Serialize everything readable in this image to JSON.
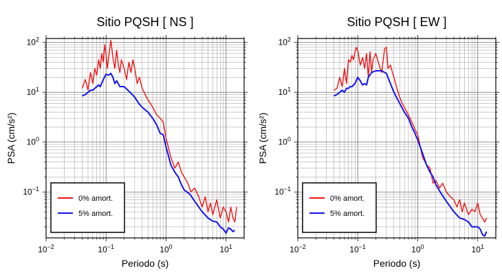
{
  "chart_data": [
    {
      "type": "line",
      "title": "Sitio PQSH [ NS ]",
      "xlabel": "Periodo (s)",
      "ylabel": "PSA (cm/s²)",
      "xscale": "log",
      "yscale": "log",
      "xlim": [
        0.01,
        20
      ],
      "ylim": [
        0.012,
        120
      ],
      "x_ticks": [
        {
          "value": 0.01,
          "base": "10",
          "exp": "−2"
        },
        {
          "value": 0.1,
          "base": "10",
          "exp": "−1"
        },
        {
          "value": 1,
          "base": "10",
          "exp": "0"
        },
        {
          "value": 10,
          "base": "10",
          "exp": "1"
        }
      ],
      "y_ticks": [
        {
          "value": 0.1,
          "base": "10",
          "exp": "−1"
        },
        {
          "value": 1,
          "base": "10",
          "exp": "0"
        },
        {
          "value": 10,
          "base": "10",
          "exp": "1"
        },
        {
          "value": 100,
          "base": "10",
          "exp": "2"
        }
      ],
      "grid": true,
      "legend_position": "bottom-left",
      "series": [
        {
          "name": "0% amort.",
          "color": "#ee1111",
          "x": [
            0.04,
            0.045,
            0.05,
            0.055,
            0.06,
            0.065,
            0.07,
            0.075,
            0.08,
            0.085,
            0.09,
            0.095,
            0.1,
            0.105,
            0.11,
            0.12,
            0.13,
            0.14,
            0.15,
            0.16,
            0.17,
            0.18,
            0.2,
            0.22,
            0.24,
            0.26,
            0.28,
            0.3,
            0.33,
            0.36,
            0.4,
            0.45,
            0.5,
            0.55,
            0.6,
            0.7,
            0.8,
            0.9,
            1.0,
            1.2,
            1.4,
            1.6,
            1.8,
            2.0,
            2.3,
            2.6,
            3.0,
            3.5,
            4.0,
            4.5,
            5.0,
            5.5,
            6.0,
            7.0,
            8.0,
            9.0,
            10.0,
            11.0,
            12.0,
            13.0,
            14.0,
            15.0
          ],
          "y": [
            12,
            18,
            11,
            25,
            15,
            30,
            22,
            45,
            30,
            60,
            40,
            90,
            60,
            30,
            50,
            110,
            50,
            30,
            70,
            35,
            25,
            45,
            30,
            18,
            40,
            25,
            45,
            30,
            15,
            20,
            12,
            9,
            7,
            6,
            5,
            3.5,
            3,
            2.5,
            1.2,
            0.5,
            0.3,
            0.4,
            0.25,
            0.2,
            0.15,
            0.1,
            0.12,
            0.08,
            0.05,
            0.08,
            0.04,
            0.06,
            0.035,
            0.07,
            0.03,
            0.05,
            0.04,
            0.025,
            0.05,
            0.03,
            0.025,
            0.05
          ]
        },
        {
          "name": "5% amort.",
          "color": "#1111ee",
          "x": [
            0.04,
            0.045,
            0.05,
            0.055,
            0.06,
            0.065,
            0.07,
            0.075,
            0.08,
            0.09,
            0.1,
            0.11,
            0.12,
            0.13,
            0.14,
            0.15,
            0.17,
            0.2,
            0.25,
            0.3,
            0.35,
            0.4,
            0.5,
            0.6,
            0.7,
            0.8,
            0.9,
            1.0,
            1.2,
            1.4,
            1.6,
            1.8,
            2.0,
            2.5,
            3.0,
            3.5,
            4.0,
            5.0,
            6.0,
            7.0,
            8.0,
            9.0,
            10.0,
            11.0,
            12.0,
            13.0,
            14.0
          ],
          "y": [
            8.5,
            9,
            10,
            11,
            11,
            12,
            13,
            14,
            13,
            18,
            23,
            22,
            24,
            20,
            15,
            17,
            13,
            13,
            10,
            8,
            6,
            5,
            4,
            3,
            2.2,
            1.5,
            1.4,
            0.8,
            0.35,
            0.25,
            0.2,
            0.14,
            0.11,
            0.09,
            0.065,
            0.05,
            0.04,
            0.03,
            0.026,
            0.025,
            0.02,
            0.018,
            0.015,
            0.019,
            0.018,
            0.016,
            0.017
          ]
        }
      ]
    },
    {
      "type": "line",
      "title": "Sitio PQSH [ EW ]",
      "xlabel": "Periodo (s)",
      "ylabel": "PSA (cm/s²)",
      "xscale": "log",
      "yscale": "log",
      "xlim": [
        0.01,
        20
      ],
      "ylim": [
        0.012,
        120
      ],
      "x_ticks": [
        {
          "value": 0.01,
          "base": "10",
          "exp": "−2"
        },
        {
          "value": 0.1,
          "base": "10",
          "exp": "−1"
        },
        {
          "value": 1,
          "base": "10",
          "exp": "0"
        },
        {
          "value": 10,
          "base": "10",
          "exp": "1"
        }
      ],
      "y_ticks": [
        {
          "value": 0.1,
          "base": "10",
          "exp": "−1"
        },
        {
          "value": 1,
          "base": "10",
          "exp": "0"
        },
        {
          "value": 10,
          "base": "10",
          "exp": "1"
        },
        {
          "value": 100,
          "base": "10",
          "exp": "2"
        }
      ],
      "grid": true,
      "legend_position": "bottom-left",
      "series": [
        {
          "name": "0% amort.",
          "color": "#ee1111",
          "x": [
            0.04,
            0.045,
            0.05,
            0.055,
            0.06,
            0.065,
            0.07,
            0.075,
            0.08,
            0.085,
            0.09,
            0.095,
            0.1,
            0.11,
            0.12,
            0.13,
            0.14,
            0.15,
            0.16,
            0.17,
            0.18,
            0.2,
            0.22,
            0.25,
            0.28,
            0.3,
            0.32,
            0.35,
            0.4,
            0.45,
            0.5,
            0.55,
            0.6,
            0.7,
            0.8,
            0.9,
            1.0,
            1.2,
            1.4,
            1.6,
            1.8,
            2.0,
            2.3,
            2.6,
            3.0,
            3.5,
            4.0,
            4.5,
            5.0,
            5.5,
            6.0,
            7.0,
            8.0,
            9.0,
            10.0,
            11.0,
            12.0,
            13.0,
            14.0
          ],
          "y": [
            11,
            12,
            20,
            13,
            30,
            15,
            45,
            40,
            55,
            45,
            65,
            80,
            70,
            35,
            50,
            30,
            60,
            20,
            65,
            25,
            45,
            60,
            40,
            25,
            75,
            80,
            30,
            35,
            20,
            12,
            8,
            6,
            5,
            3.5,
            2.5,
            1.8,
            1.4,
            0.5,
            0.35,
            0.3,
            0.15,
            0.17,
            0.12,
            0.15,
            0.1,
            0.08,
            0.07,
            0.05,
            0.07,
            0.04,
            0.06,
            0.035,
            0.045,
            0.04,
            0.06,
            0.035,
            0.03,
            0.025,
            0.03
          ]
        },
        {
          "name": "5% amort.",
          "color": "#1111ee",
          "x": [
            0.04,
            0.045,
            0.05,
            0.055,
            0.06,
            0.065,
            0.07,
            0.075,
            0.08,
            0.09,
            0.1,
            0.11,
            0.12,
            0.13,
            0.14,
            0.15,
            0.17,
            0.2,
            0.25,
            0.3,
            0.35,
            0.4,
            0.5,
            0.6,
            0.7,
            0.8,
            0.9,
            1.0,
            1.2,
            1.4,
            1.6,
            1.8,
            2.0,
            2.5,
            3.0,
            3.5,
            4.0,
            5.0,
            6.0,
            7.0,
            8.0,
            9.0,
            10.0,
            11.0,
            12.0,
            13.0,
            14.0
          ],
          "y": [
            8.5,
            9,
            10,
            11,
            10,
            12,
            12,
            13,
            13,
            15,
            20,
            17,
            14,
            15,
            14,
            20,
            25,
            27,
            27,
            24,
            15,
            10,
            6,
            4,
            3,
            2,
            1.5,
            1.1,
            0.6,
            0.35,
            0.25,
            0.2,
            0.14,
            0.09,
            0.065,
            0.05,
            0.04,
            0.03,
            0.028,
            0.025,
            0.02,
            0.02,
            0.02,
            0.018,
            0.014,
            0.013,
            0.016
          ]
        }
      ]
    }
  ]
}
